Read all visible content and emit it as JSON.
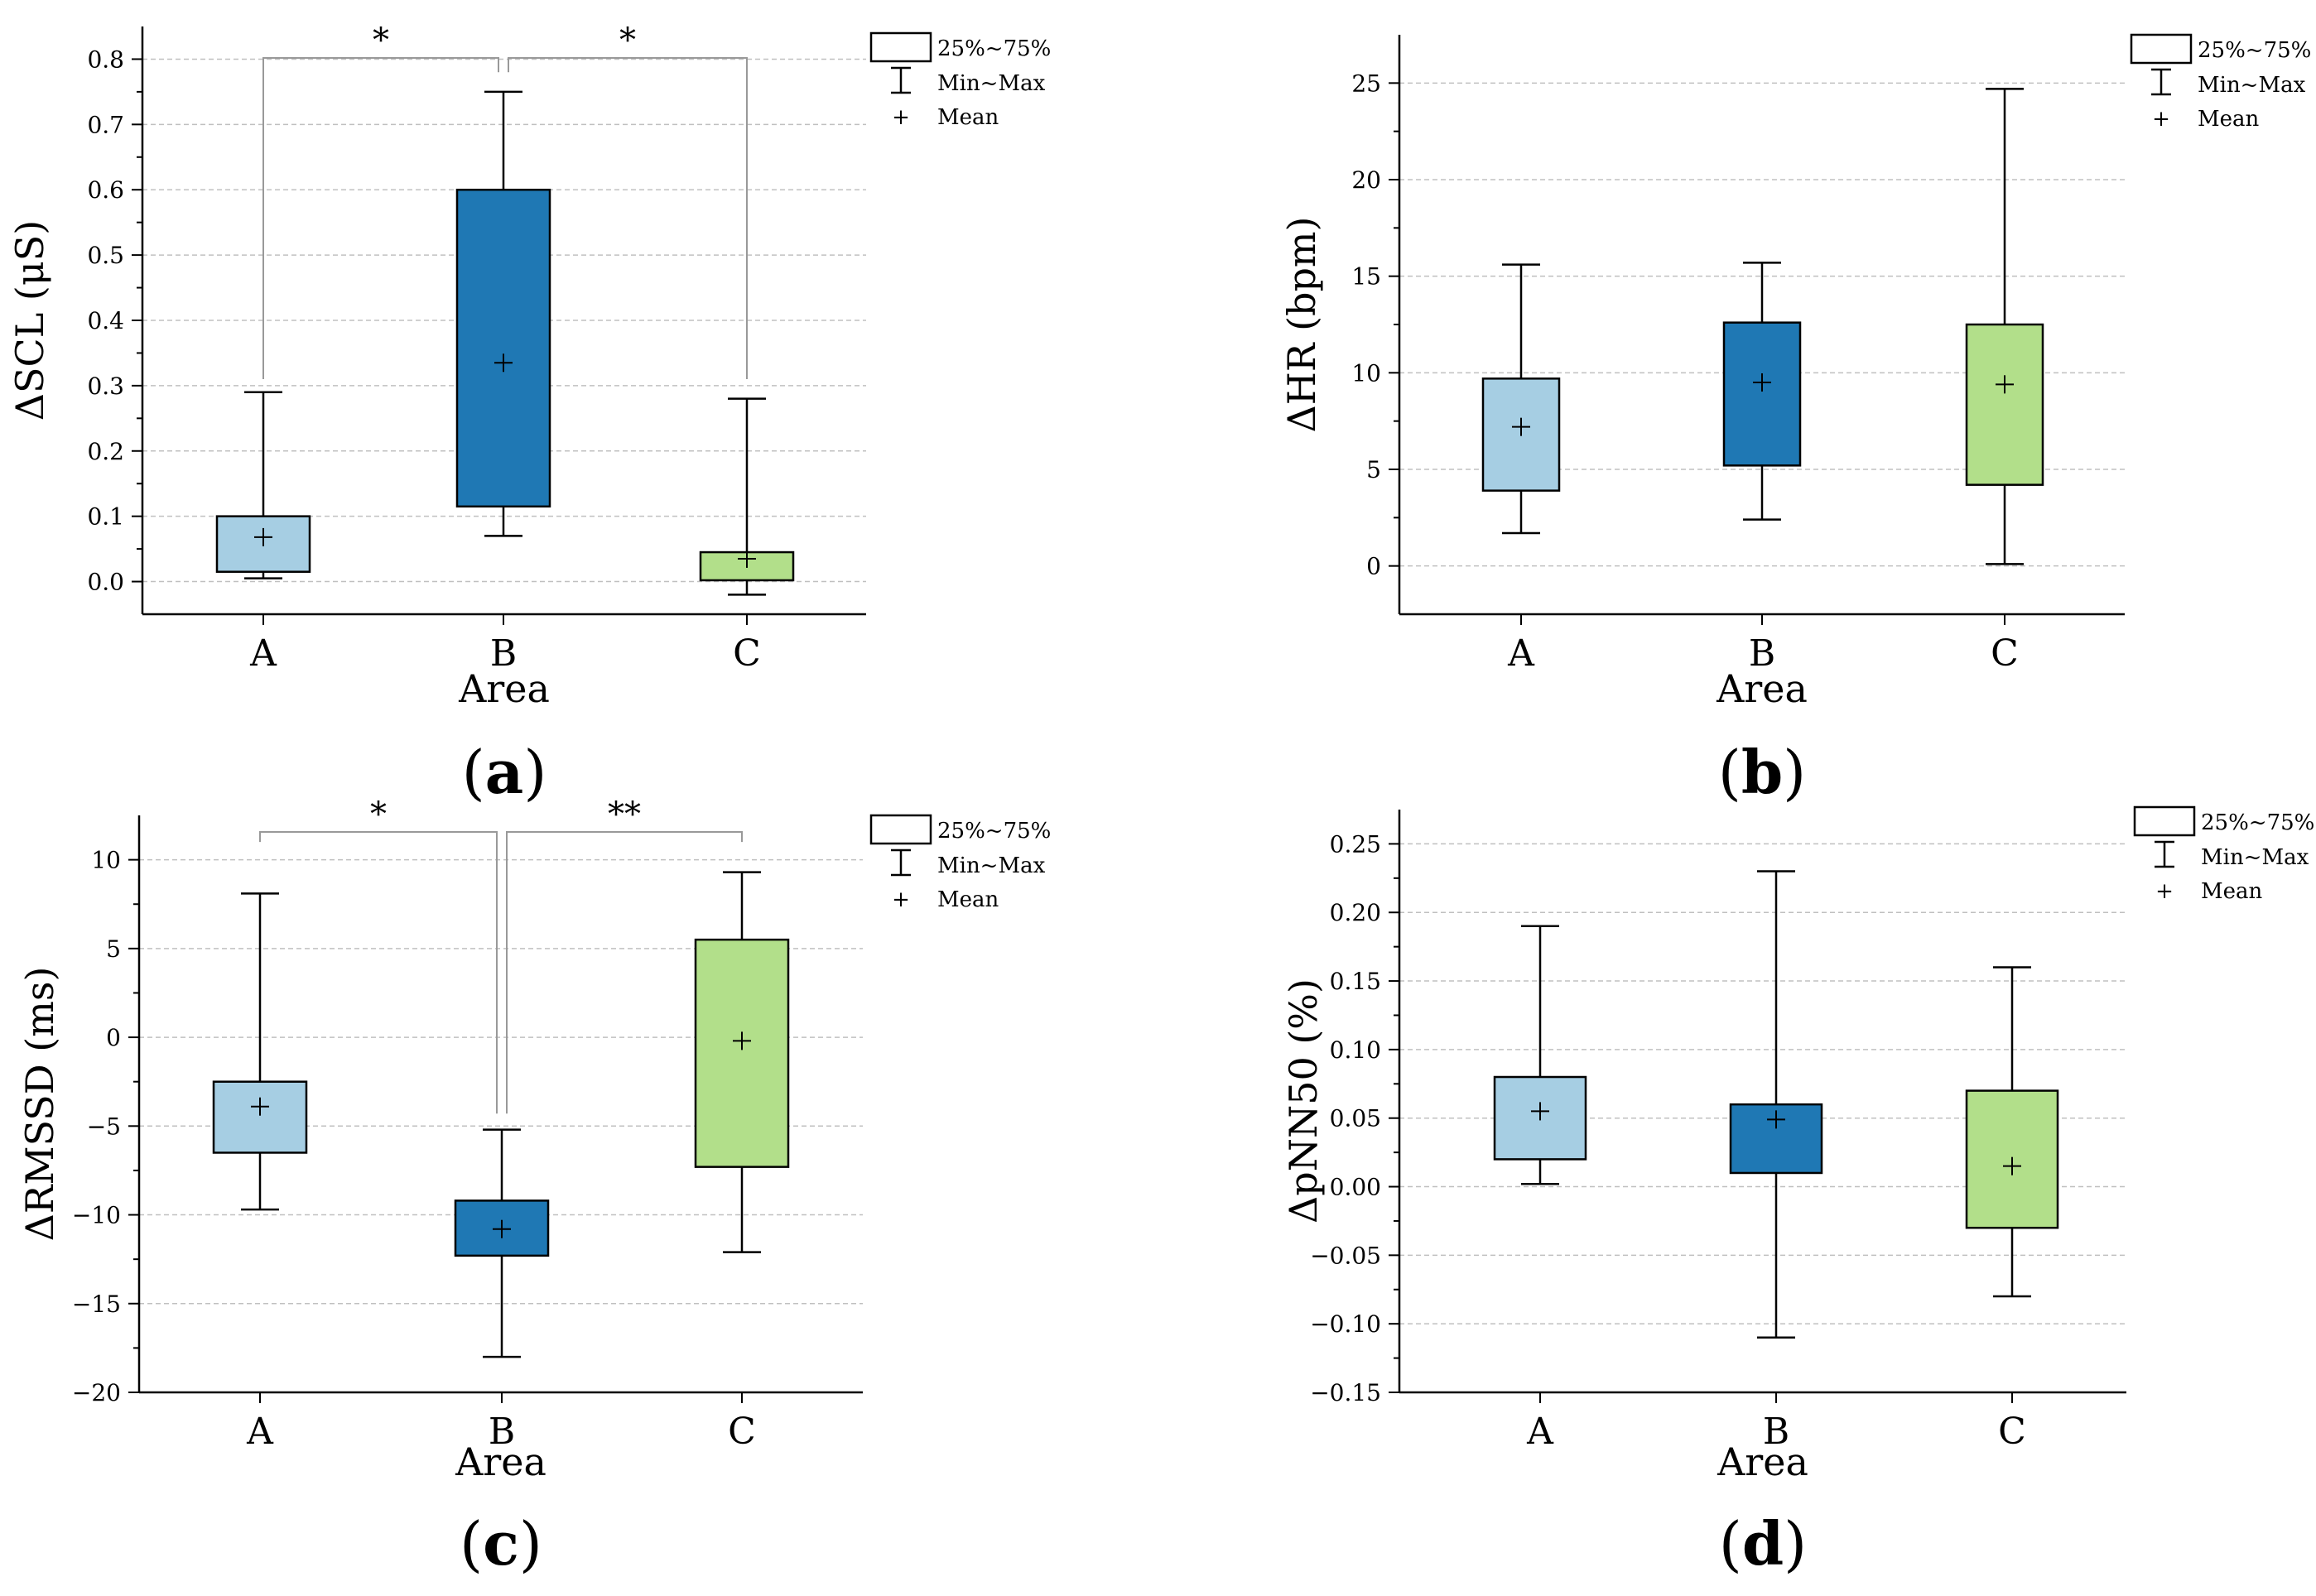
{
  "legend": {
    "box_label": "25%~75%",
    "whisker_label": "Min~Max",
    "mean_label": "Mean",
    "mean_marker": "+"
  },
  "colors": {
    "A": "#a6cee3",
    "B": "#1f78b4",
    "C": "#b2df8a",
    "grid": "#c0c0c0",
    "bracket": "#999999"
  },
  "chart_data": [
    {
      "id": "a",
      "type": "box",
      "panel_label": "a",
      "xlabel": "Area",
      "ylabel": "ΔSCL (μS)",
      "ylim": [
        -0.05,
        0.85
      ],
      "yticks": [
        0.0,
        0.1,
        0.2,
        0.3,
        0.4,
        0.5,
        0.6,
        0.7,
        0.8
      ],
      "ytick_labels": [
        "0.0",
        "0.1",
        "0.2",
        "0.3",
        "0.4",
        "0.5",
        "0.6",
        "0.7",
        "0.8"
      ],
      "categories": [
        "A",
        "B",
        "C"
      ],
      "boxes": [
        {
          "category": "A",
          "min": 0.005,
          "q1": 0.015,
          "q3": 0.1,
          "max": 0.29,
          "mean": 0.068
        },
        {
          "category": "B",
          "min": 0.07,
          "q1": 0.115,
          "q3": 0.6,
          "max": 0.75,
          "mean": 0.335
        },
        {
          "category": "C",
          "min": -0.02,
          "q1": 0.002,
          "q3": 0.045,
          "max": 0.28,
          "mean": 0.035
        }
      ],
      "significance": [
        {
          "from": "A",
          "to": "B",
          "label": "*"
        },
        {
          "from": "B",
          "to": "C",
          "label": "*"
        }
      ]
    },
    {
      "id": "b",
      "type": "box",
      "panel_label": "b",
      "xlabel": "Area",
      "ylabel": "ΔHR (bpm)",
      "ylim": [
        -2.5,
        27.5
      ],
      "yticks": [
        0,
        5,
        10,
        15,
        20,
        25
      ],
      "ytick_labels": [
        "0",
        "5",
        "10",
        "15",
        "20",
        "25"
      ],
      "categories": [
        "A",
        "B",
        "C"
      ],
      "boxes": [
        {
          "category": "A",
          "min": 1.7,
          "q1": 3.9,
          "q3": 9.7,
          "max": 15.6,
          "mean": 7.2
        },
        {
          "category": "B",
          "min": 2.4,
          "q1": 5.2,
          "q3": 12.6,
          "max": 15.7,
          "mean": 9.5
        },
        {
          "category": "C",
          "min": 0.1,
          "q1": 4.2,
          "q3": 12.5,
          "max": 24.7,
          "mean": 9.4
        }
      ],
      "significance": []
    },
    {
      "id": "c",
      "type": "box",
      "panel_label": "c",
      "xlabel": "Area",
      "ylabel": "ΔRMSSD (ms)",
      "ylim": [
        -20,
        12.5
      ],
      "yticks": [
        -20,
        -15,
        -10,
        -5,
        0,
        5,
        10
      ],
      "ytick_labels": [
        "−20",
        "−15",
        "−10",
        "−5",
        "0",
        "5",
        "10"
      ],
      "categories": [
        "A",
        "B",
        "C"
      ],
      "boxes": [
        {
          "category": "A",
          "min": -9.7,
          "q1": -6.5,
          "q3": -2.5,
          "max": 8.1,
          "mean": -3.9
        },
        {
          "category": "B",
          "min": -18.0,
          "q1": -12.3,
          "q3": -9.2,
          "max": -5.2,
          "mean": -10.8
        },
        {
          "category": "C",
          "min": -12.1,
          "q1": -7.3,
          "q3": 5.5,
          "max": 9.3,
          "mean": -0.2
        }
      ],
      "significance": [
        {
          "from": "A",
          "to": "B",
          "label": "*"
        },
        {
          "from": "B",
          "to": "C",
          "label": "**"
        }
      ]
    },
    {
      "id": "d",
      "type": "box",
      "panel_label": "d",
      "xlabel": "Area",
      "ylabel": "ΔpNN50 (%)",
      "ylim": [
        -0.15,
        0.275
      ],
      "yticks": [
        -0.15,
        -0.1,
        -0.05,
        0.0,
        0.05,
        0.1,
        0.15,
        0.2,
        0.25
      ],
      "ytick_labels": [
        "−0.15",
        "−0.10",
        "−0.05",
        "0.00",
        "0.05",
        "0.10",
        "0.15",
        "0.20",
        "0.25"
      ],
      "categories": [
        "A",
        "B",
        "C"
      ],
      "boxes": [
        {
          "category": "A",
          "min": 0.002,
          "q1": 0.02,
          "q3": 0.08,
          "max": 0.19,
          "mean": 0.055
        },
        {
          "category": "B",
          "min": -0.11,
          "q1": 0.01,
          "q3": 0.06,
          "max": 0.23,
          "mean": 0.049
        },
        {
          "category": "C",
          "min": -0.08,
          "q1": -0.03,
          "q3": 0.07,
          "max": 0.16,
          "mean": 0.015
        }
      ],
      "significance": []
    }
  ]
}
